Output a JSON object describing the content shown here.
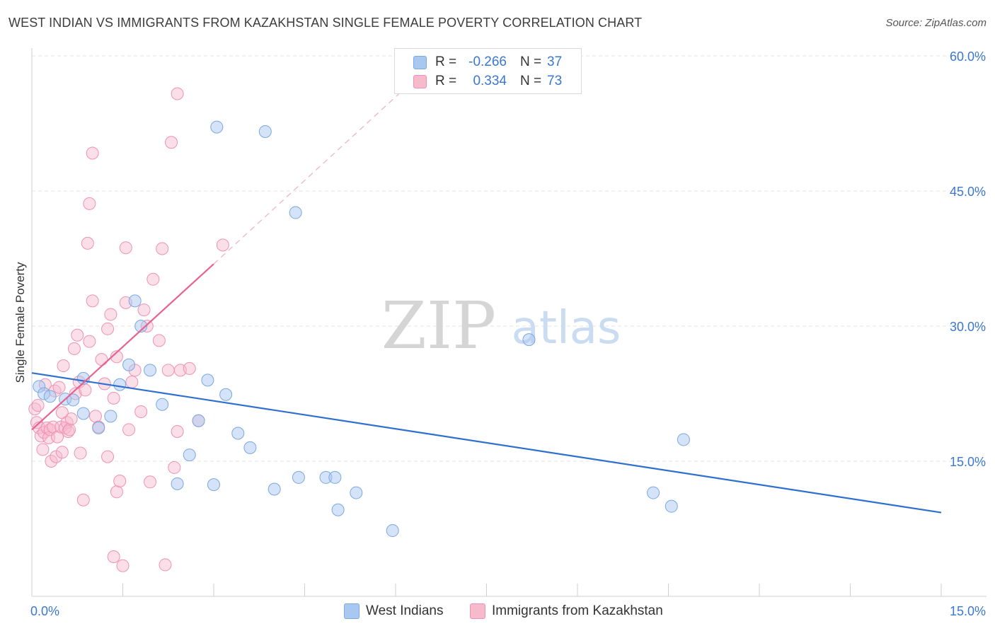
{
  "header": {
    "title": "WEST INDIAN VS IMMIGRANTS FROM KAZAKHSTAN SINGLE FEMALE POVERTY CORRELATION CHART",
    "source": "Source: ZipAtlas.com"
  },
  "watermark": {
    "zip": "ZIP",
    "atlas": "atlas"
  },
  "legend": {
    "series1": {
      "r_label": "R =",
      "r_value": "-0.266",
      "n_label": "N =",
      "n_value": "37"
    },
    "series2": {
      "r_label": "R =",
      "r_value": "0.334",
      "n_label": "N =",
      "n_value": "73"
    }
  },
  "bottom_legend": {
    "series1": "West Indians",
    "series2": "Immigrants from Kazakhstan"
  },
  "colors": {
    "series1_fill": "#a9c8f1",
    "series1_stroke": "#7aa8e0",
    "series1_line": "#2f6fd0",
    "series2_fill": "#f7b9cc",
    "series2_stroke": "#ef92b1",
    "series2_line": "#e8628f",
    "tick_text": "#3a78d0",
    "grid": "#e3e3e3"
  },
  "chart_data": {
    "type": "scatter",
    "title": "WEST INDIAN VS IMMIGRANTS FROM KAZAKHSTAN SINGLE FEMALE POVERTY CORRELATION CHART",
    "xlabel": "",
    "ylabel": "Single Female Poverty",
    "xlim": [
      0,
      15
    ],
    "ylim": [
      0,
      60
    ],
    "x_tick_labels": [
      "0.0%",
      "15.0%"
    ],
    "y_ticks": [
      15,
      30,
      45,
      60
    ],
    "y_tick_labels": [
      "15.0%",
      "30.0%",
      "45.0%",
      "60.0%"
    ],
    "grid": true,
    "series": [
      {
        "name": "West Indians",
        "r": -0.266,
        "n": 37,
        "trend": {
          "x": [
            0,
            15
          ],
          "y": [
            24.8,
            9.3
          ]
        },
        "points": [
          [
            0.12,
            23.3
          ],
          [
            0.2,
            22.5
          ],
          [
            0.3,
            22.2
          ],
          [
            0.55,
            21.9
          ],
          [
            0.68,
            21.8
          ],
          [
            0.85,
            24.2
          ],
          [
            0.85,
            20.3
          ],
          [
            1.1,
            18.7
          ],
          [
            1.3,
            20.0
          ],
          [
            1.45,
            23.5
          ],
          [
            1.6,
            25.7
          ],
          [
            1.7,
            32.8
          ],
          [
            1.8,
            30.0
          ],
          [
            1.95,
            25.1
          ],
          [
            2.15,
            21.3
          ],
          [
            2.4,
            12.5
          ],
          [
            2.6,
            15.7
          ],
          [
            2.75,
            19.5
          ],
          [
            2.9,
            24.0
          ],
          [
            3.0,
            12.4
          ],
          [
            3.05,
            52.1
          ],
          [
            3.2,
            22.4
          ],
          [
            3.4,
            18.1
          ],
          [
            3.6,
            16.5
          ],
          [
            3.85,
            51.6
          ],
          [
            4.0,
            11.9
          ],
          [
            4.35,
            42.6
          ],
          [
            4.4,
            13.2
          ],
          [
            4.85,
            13.2
          ],
          [
            5.0,
            13.2
          ],
          [
            5.05,
            9.6
          ],
          [
            5.35,
            11.5
          ],
          [
            5.95,
            7.3
          ],
          [
            8.2,
            28.5
          ],
          [
            10.25,
            11.5
          ],
          [
            10.55,
            10.0
          ],
          [
            10.75,
            17.4
          ]
        ]
      },
      {
        "name": "Immigrants from Kazakhstan",
        "r": 0.334,
        "n": 73,
        "trend": {
          "x": [
            0,
            3.0
          ],
          "y": [
            18.5,
            36.9
          ]
        },
        "trend_extended": {
          "x": [
            3.0,
            6.3
          ],
          "y": [
            36.9,
            57.3
          ]
        },
        "points": [
          [
            0.05,
            20.8
          ],
          [
            0.08,
            19.3
          ],
          [
            0.1,
            21.2
          ],
          [
            0.12,
            18.7
          ],
          [
            0.15,
            17.8
          ],
          [
            0.18,
            16.3
          ],
          [
            0.2,
            18.2
          ],
          [
            0.22,
            23.5
          ],
          [
            0.25,
            18.7
          ],
          [
            0.28,
            17.6
          ],
          [
            0.3,
            18.5
          ],
          [
            0.32,
            15.0
          ],
          [
            0.35,
            18.8
          ],
          [
            0.38,
            22.8
          ],
          [
            0.4,
            15.5
          ],
          [
            0.42,
            17.7
          ],
          [
            0.45,
            23.2
          ],
          [
            0.48,
            18.8
          ],
          [
            0.5,
            20.4
          ],
          [
            0.5,
            16.0
          ],
          [
            0.52,
            25.6
          ],
          [
            0.55,
            18.7
          ],
          [
            0.58,
            19.3
          ],
          [
            0.6,
            18.3
          ],
          [
            0.62,
            18.5
          ],
          [
            0.65,
            19.7
          ],
          [
            0.7,
            27.5
          ],
          [
            0.72,
            22.5
          ],
          [
            0.75,
            29.0
          ],
          [
            0.78,
            23.8
          ],
          [
            0.8,
            15.9
          ],
          [
            0.85,
            10.7
          ],
          [
            0.88,
            22.9
          ],
          [
            0.92,
            39.2
          ],
          [
            0.95,
            28.3
          ],
          [
            0.95,
            43.6
          ],
          [
            1.0,
            49.2
          ],
          [
            1.0,
            32.8
          ],
          [
            1.05,
            20.0
          ],
          [
            1.1,
            18.8
          ],
          [
            1.15,
            26.3
          ],
          [
            1.2,
            23.6
          ],
          [
            1.25,
            29.7
          ],
          [
            1.25,
            15.5
          ],
          [
            1.3,
            31.3
          ],
          [
            1.35,
            22.0
          ],
          [
            1.35,
            4.4
          ],
          [
            1.4,
            26.6
          ],
          [
            1.4,
            11.6
          ],
          [
            1.45,
            12.8
          ],
          [
            1.5,
            3.4
          ],
          [
            1.55,
            38.7
          ],
          [
            1.55,
            32.6
          ],
          [
            1.6,
            18.5
          ],
          [
            1.65,
            23.8
          ],
          [
            1.7,
            25.1
          ],
          [
            1.8,
            20.5
          ],
          [
            1.85,
            31.8
          ],
          [
            1.9,
            30.0
          ],
          [
            1.95,
            12.7
          ],
          [
            2.0,
            35.2
          ],
          [
            2.1,
            28.4
          ],
          [
            2.15,
            38.6
          ],
          [
            2.2,
            3.5
          ],
          [
            2.25,
            25.1
          ],
          [
            2.3,
            50.4
          ],
          [
            2.35,
            14.3
          ],
          [
            2.4,
            18.3
          ],
          [
            2.4,
            55.8
          ],
          [
            2.45,
            25.1
          ],
          [
            2.6,
            25.3
          ],
          [
            2.75,
            19.5
          ],
          [
            3.15,
            39.0
          ]
        ]
      }
    ]
  }
}
